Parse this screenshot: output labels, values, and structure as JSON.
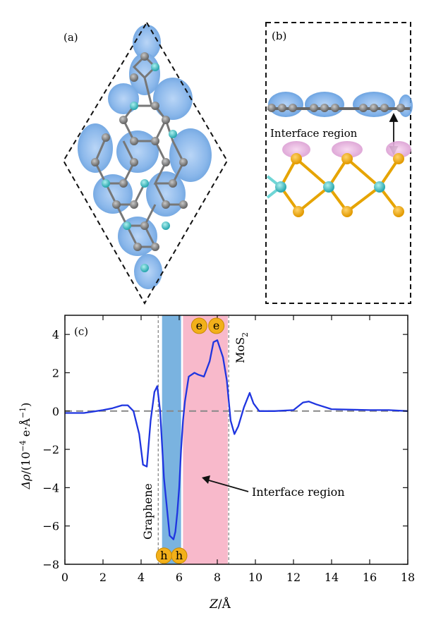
{
  "panels": {
    "a": {
      "label": "(a)"
    },
    "b": {
      "label": "(b)",
      "annotation": "Interface region"
    },
    "c": {
      "label": "(c)"
    }
  },
  "chart_data": {
    "type": "line",
    "title": "",
    "xlabel_var": "Z",
    "xlabel_unit": "/Å",
    "ylabel_var": "Δρ",
    "ylabel_unit_prefix": "/(10",
    "ylabel_exp": "−4",
    "ylabel_unit_mid": " e·Å",
    "ylabel_exp2": "−1",
    "ylabel_unit_suffix": ")",
    "xlim": [
      0,
      18
    ],
    "ylim": [
      -8,
      5
    ],
    "xticks": [
      0,
      2,
      4,
      6,
      8,
      10,
      12,
      14,
      16,
      18
    ],
    "yticks": [
      -8,
      -6,
      -4,
      -2,
      0,
      2,
      4
    ],
    "series": [
      {
        "color": "#1f35e0",
        "x": [
          0,
          1,
          2,
          2.5,
          3,
          3.3,
          3.6,
          3.9,
          4.1,
          4.3,
          4.5,
          4.7,
          4.85,
          5.0,
          5.2,
          5.5,
          5.7,
          5.8,
          5.9,
          6.0,
          6.1,
          6.2,
          6.3,
          6.5,
          6.8,
          7.0,
          7.3,
          7.6,
          7.8,
          8.0,
          8.3,
          8.5,
          8.7,
          8.9,
          9.1,
          9.4,
          9.7,
          9.9,
          10.2,
          11,
          12,
          12.5,
          12.8,
          13.2,
          14,
          16,
          17,
          18
        ],
        "y": [
          -0.1,
          -0.1,
          0.05,
          0.15,
          0.3,
          0.3,
          0.0,
          -1.2,
          -2.8,
          -2.9,
          -0.5,
          1.0,
          1.3,
          0.0,
          -3.5,
          -6.5,
          -6.7,
          -6.3,
          -5.3,
          -4.0,
          -2.0,
          -0.5,
          0.5,
          1.8,
          2.0,
          1.9,
          1.8,
          2.6,
          3.6,
          3.7,
          2.8,
          1.6,
          -0.5,
          -1.2,
          -0.8,
          0.2,
          0.95,
          0.4,
          0.0,
          0.0,
          0.05,
          0.45,
          0.5,
          0.35,
          0.1,
          0.05,
          0.05,
          0.0
        ]
      }
    ],
    "shaded_regions": [
      {
        "x": [
          5.1,
          6.1
        ],
        "color": "#7ab3e0"
      },
      {
        "x": [
          6.2,
          8.55
        ],
        "color": "#f8b9cb"
      }
    ],
    "vlines": [
      4.9,
      8.6
    ],
    "hline": 0,
    "annotations": [
      {
        "text": "Graphene"
      },
      {
        "text": "MoS",
        "sub": "2"
      },
      {
        "text": "Interface region"
      }
    ],
    "markers": [
      {
        "letter": "h",
        "x": 5.2,
        "y": -7.55
      },
      {
        "letter": "h",
        "x": 6.0,
        "y": -7.55
      },
      {
        "letter": "e",
        "x": 7.05,
        "y": 4.45
      },
      {
        "letter": "e",
        "x": 7.95,
        "y": 4.45
      }
    ],
    "colors": {
      "blue_region": "#7ab3e0",
      "pink_region": "#f8b9cb",
      "marker_fill": "#f2b01a",
      "line": "#1f35e0"
    }
  }
}
